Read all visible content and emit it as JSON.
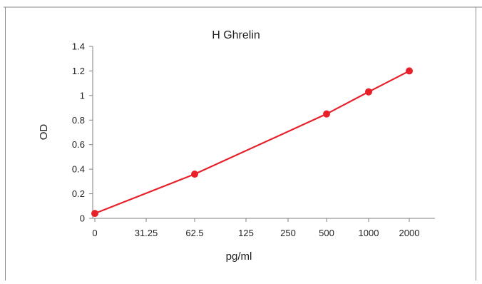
{
  "chart_data": {
    "type": "line",
    "title": "H Ghrelin",
    "xlabel": "pg/ml",
    "ylabel": "OD",
    "x_categories": [
      "0",
      "31.25",
      "62.5",
      "125",
      "250",
      "500",
      "1000",
      "2000"
    ],
    "y_ticks": [
      "0",
      "0.2",
      "0.4",
      "0.6",
      "0.8",
      "1",
      "1.2",
      "1.4"
    ],
    "ylim": [
      0,
      1.4
    ],
    "grid": false,
    "legend": "none",
    "series": [
      {
        "x_index": [
          0,
          2,
          5,
          6,
          7
        ],
        "x": [
          "0",
          "62.5",
          "500",
          "1000",
          "2000"
        ],
        "y": [
          0.04,
          0.36,
          0.85,
          1.03,
          1.2
        ],
        "color": "#e8202a"
      }
    ]
  }
}
